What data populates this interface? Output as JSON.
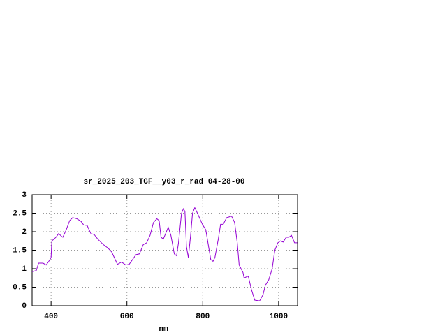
{
  "chart_data": {
    "type": "line",
    "title": "sr_2025_203_TGF__y03_r_rad 04-28-00",
    "x_label": "nm",
    "xlim": [
      350,
      1050
    ],
    "ylim": [
      0,
      3
    ],
    "xticks": [
      400,
      600,
      800,
      1000
    ],
    "yticks": [
      0,
      0.5,
      1,
      1.5,
      2,
      2.5,
      3
    ],
    "grid": true,
    "series": [
      {
        "color": "#9400d3",
        "x": [
          350,
          361,
          367,
          379,
          387,
          394,
          400,
          402,
          413,
          420,
          427,
          431,
          440,
          449,
          457,
          468,
          479,
          486,
          495,
          505,
          514,
          523,
          538,
          551,
          560,
          575,
          586,
          597,
          606,
          624,
          633,
          643,
          652,
          661,
          670,
          679,
          685,
          690,
          696,
          709,
          716,
          725,
          731,
          736,
          744,
          749,
          753,
          757,
          762,
          768,
          773,
          779,
          786,
          799,
          808,
          817,
          821,
          827,
          832,
          841,
          847,
          854,
          863,
          876,
          884,
          891,
          896,
          906,
          909,
          920,
          928,
          937,
          950,
          959,
          965,
          974,
          983,
          990,
          998,
          1005,
          1012,
          1020,
          1027,
          1034,
          1042,
          1049
        ],
        "values": [
          0.92,
          0.95,
          1.15,
          1.15,
          1.1,
          1.2,
          1.3,
          1.75,
          1.85,
          1.95,
          1.88,
          1.85,
          2.05,
          2.3,
          2.38,
          2.35,
          2.28,
          2.18,
          2.17,
          1.95,
          1.92,
          1.8,
          1.65,
          1.55,
          1.45,
          1.12,
          1.18,
          1.1,
          1.12,
          1.38,
          1.4,
          1.65,
          1.7,
          1.9,
          2.25,
          2.35,
          2.3,
          1.85,
          1.8,
          2.12,
          1.9,
          1.4,
          1.35,
          1.7,
          2.5,
          2.62,
          2.55,
          1.6,
          1.3,
          1.9,
          2.5,
          2.65,
          2.5,
          2.2,
          2.05,
          1.5,
          1.25,
          1.2,
          1.3,
          1.8,
          2.2,
          2.2,
          2.38,
          2.42,
          2.25,
          1.7,
          1.1,
          0.9,
          0.75,
          0.8,
          0.45,
          0.15,
          0.13,
          0.3,
          0.55,
          0.7,
          1.0,
          1.5,
          1.7,
          1.75,
          1.72,
          1.85,
          1.85,
          1.9,
          1.7,
          1.7
        ]
      }
    ]
  }
}
